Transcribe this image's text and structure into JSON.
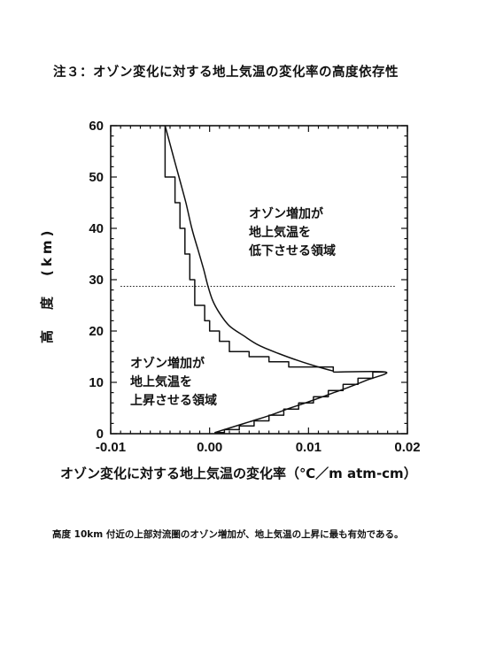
{
  "title": "注３：オゾン変化に対する地上気温の変化率の高度依存性",
  "chart_data": {
    "type": "line",
    "xlabel": "オゾン変化に対する地上気温の変化率（℃／m atm-cm）",
    "ylabel": "高　度　(km)",
    "xlim": [
      -0.01,
      0.02
    ],
    "ylim": [
      0,
      60
    ],
    "xticks": [
      -0.01,
      0,
      0.01,
      0.02
    ],
    "xtick_labels": [
      "-0.01",
      "0.00",
      "0.01",
      "0.02"
    ],
    "yticks": [
      0,
      10,
      20,
      30,
      40,
      50,
      60
    ],
    "ytick_labels": [
      "0",
      "10",
      "20",
      "30",
      "40",
      "50",
      "60"
    ],
    "grid": false,
    "series": [
      {
        "style": "smooth",
        "x": [
          -0.0045,
          -0.0038,
          -0.0031,
          -0.0024,
          -0.0018,
          -0.0012,
          -0.0006,
          -0.0002,
          0.0003,
          0.001,
          0.002,
          0.0035,
          0.005,
          0.007,
          0.009,
          0.011,
          0.0125
        ],
        "y": [
          60,
          55,
          50,
          45,
          40,
          36,
          32,
          29,
          26,
          23.5,
          21,
          19,
          17.2,
          15.6,
          14.2,
          13,
          12.2
        ]
      },
      {
        "style": "step",
        "x": [
          -0.0045,
          -0.0045,
          -0.0035,
          -0.0035,
          -0.003,
          -0.003,
          -0.0025,
          -0.0025,
          -0.002,
          -0.002,
          -0.0015,
          -0.0015,
          -0.0005,
          -0.0005,
          0.0,
          0.0,
          0.001,
          0.001,
          0.002,
          0.002,
          0.004,
          0.004,
          0.006,
          0.006,
          0.008,
          0.008,
          0.0125,
          0.0125
        ],
        "y": [
          60,
          50,
          50,
          45,
          45,
          40,
          40,
          35,
          35,
          30,
          30,
          25,
          25,
          22,
          22,
          20,
          20,
          18,
          18,
          16,
          16,
          15,
          15,
          14,
          14,
          13,
          13,
          12
        ]
      },
      {
        "style": "smooth",
        "x": [
          0.0125,
          0.0178,
          0.016,
          0.014,
          0.012,
          0.01,
          0.008,
          0.006,
          0.004,
          0.002,
          0.0005
        ],
        "y": [
          12,
          12,
          10.5,
          9,
          7.6,
          6.2,
          4.9,
          3.5,
          2.3,
          1.1,
          0.2
        ]
      },
      {
        "style": "step",
        "x": [
          0.0178,
          0.0165,
          0.0165,
          0.015,
          0.015,
          0.0135,
          0.0135,
          0.012,
          0.012,
          0.0105,
          0.0105,
          0.009,
          0.009,
          0.0075,
          0.0075,
          0.006,
          0.006,
          0.0045,
          0.0045,
          0.003,
          0.003,
          0.0015,
          0.0015,
          0.0005
        ],
        "y": [
          12,
          12,
          10.8,
          10.8,
          9.6,
          9.6,
          8.4,
          8.4,
          7.2,
          7.2,
          6,
          6,
          4.8,
          4.8,
          3.6,
          3.6,
          2.5,
          2.5,
          1.5,
          1.5,
          0.8,
          0.8,
          0.2,
          0.2
        ]
      },
      {
        "style": "dotted",
        "x": [
          -0.009,
          0.0188
        ],
        "y": [
          28.7,
          28.7
        ]
      }
    ],
    "annotations": [
      {
        "lines": [
          "オゾン増加が",
          "地上気温を",
          "低下させる領域"
        ]
      },
      {
        "lines": [
          "オゾン増加が",
          "地上気温を",
          "上昇させる領域"
        ]
      }
    ]
  },
  "footnote": "高度 10km 付近の上部対流圏のオゾン増加が、地上気温の上昇に最も有効である。"
}
